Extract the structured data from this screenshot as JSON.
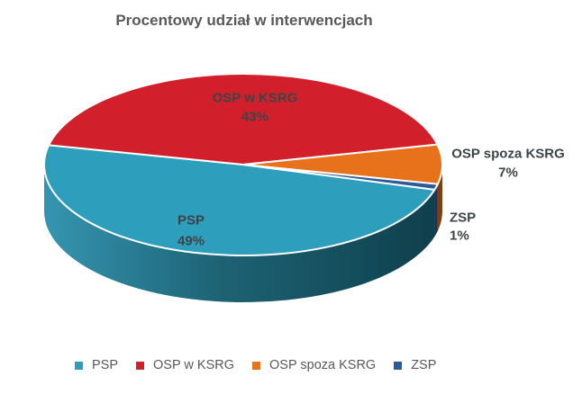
{
  "chart_data": {
    "type": "pie",
    "effect": "3d",
    "title": "Procentowy udział w interwencjach",
    "legend_position": "bottom",
    "start_angle_deg": 16,
    "segments": [
      {
        "label": "PSP",
        "value": 49,
        "display_value": "49%",
        "color": "#2E9EBD",
        "label_placement": "inside"
      },
      {
        "label": "OSP w KSRG",
        "value": 43,
        "display_value": "43%",
        "color": "#D1202B",
        "label_placement": "inside"
      },
      {
        "label": "OSP spoza KSRG",
        "value": 7,
        "display_value": "7%",
        "color": "#E8711B",
        "label_placement": "outside-right"
      },
      {
        "label": "ZSP",
        "value": 1,
        "display_value": "1%",
        "color": "#2B5C99",
        "label_placement": "outside-right"
      }
    ],
    "legend": [
      "PSP",
      "OSP w KSRG",
      "OSP spoza KSRG",
      "ZSP"
    ]
  },
  "styles": {
    "background": "#FFFFFF",
    "title_color": "#595959",
    "data_label_color": "#3D4448",
    "legend_text_color": "#595959",
    "slice_border_color": "#FFFFFF",
    "rim_gradient": [
      "#3595B1",
      "#1D6374",
      "#0F3F4C"
    ]
  }
}
